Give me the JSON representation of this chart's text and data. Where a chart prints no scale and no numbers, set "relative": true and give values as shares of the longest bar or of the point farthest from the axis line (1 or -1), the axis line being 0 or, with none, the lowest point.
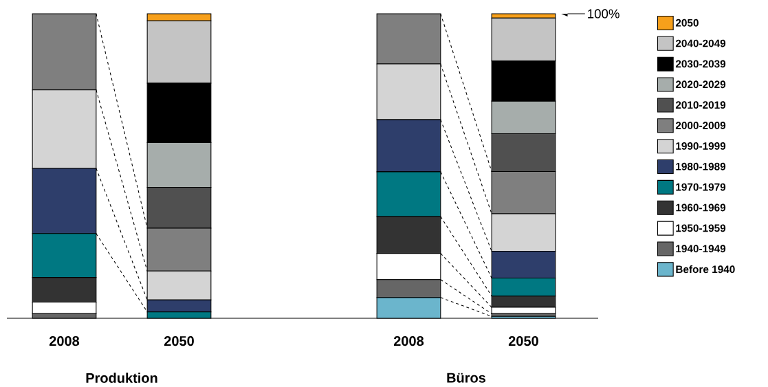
{
  "chart_data": {
    "type": "bar",
    "stacked": true,
    "relative": true,
    "legend": "right",
    "categories": [
      "2008",
      "2050",
      "2008",
      "2050"
    ],
    "annotations": [
      "100%",
      "Produktion",
      "Büros"
    ],
    "series": [
      {
        "name": "Before 1940",
        "color": "#6bb5cc",
        "values": [
          0,
          0,
          0.068,
          0.006
        ]
      },
      {
        "name": "1940-1949",
        "color": "#666666",
        "values": [
          0.015,
          0,
          0.059,
          0.009
        ]
      },
      {
        "name": "1950-1959",
        "color": "#ffffff",
        "values": [
          0.038,
          0,
          0.086,
          0.021
        ]
      },
      {
        "name": "1960-1969",
        "color": "#333333",
        "values": [
          0.081,
          0,
          0.121,
          0.037
        ]
      },
      {
        "name": "1970-1979",
        "color": "#007882",
        "values": [
          0.144,
          0.021,
          0.147,
          0.059
        ]
      },
      {
        "name": "1980-1989",
        "color": "#2e3e6b",
        "values": [
          0.214,
          0.039,
          0.171,
          0.088
        ]
      },
      {
        "name": "1990-1999",
        "color": "#d4d4d4",
        "values": [
          0.258,
          0.095,
          0.183,
          0.123
        ]
      },
      {
        "name": "2000-2009",
        "color": "#7f7f7f",
        "values": [
          0.25,
          0.141,
          0.165,
          0.139
        ]
      },
      {
        "name": "2010-2019",
        "color": "#505050",
        "values": [
          0,
          0.134,
          0,
          0.124
        ]
      },
      {
        "name": "2020-2029",
        "color": "#a6adab",
        "values": [
          0,
          0.147,
          0,
          0.107
        ]
      },
      {
        "name": "2030-2039",
        "color": "#000000",
        "values": [
          0,
          0.195,
          0,
          0.132
        ]
      },
      {
        "name": "2040-2049",
        "color": "#c4c4c4",
        "values": [
          0,
          0.205,
          0,
          0.141
        ]
      },
      {
        "name": "2050",
        "color": "#f7a01b",
        "values": [
          0,
          0.023,
          0,
          0.014
        ]
      }
    ]
  }
}
